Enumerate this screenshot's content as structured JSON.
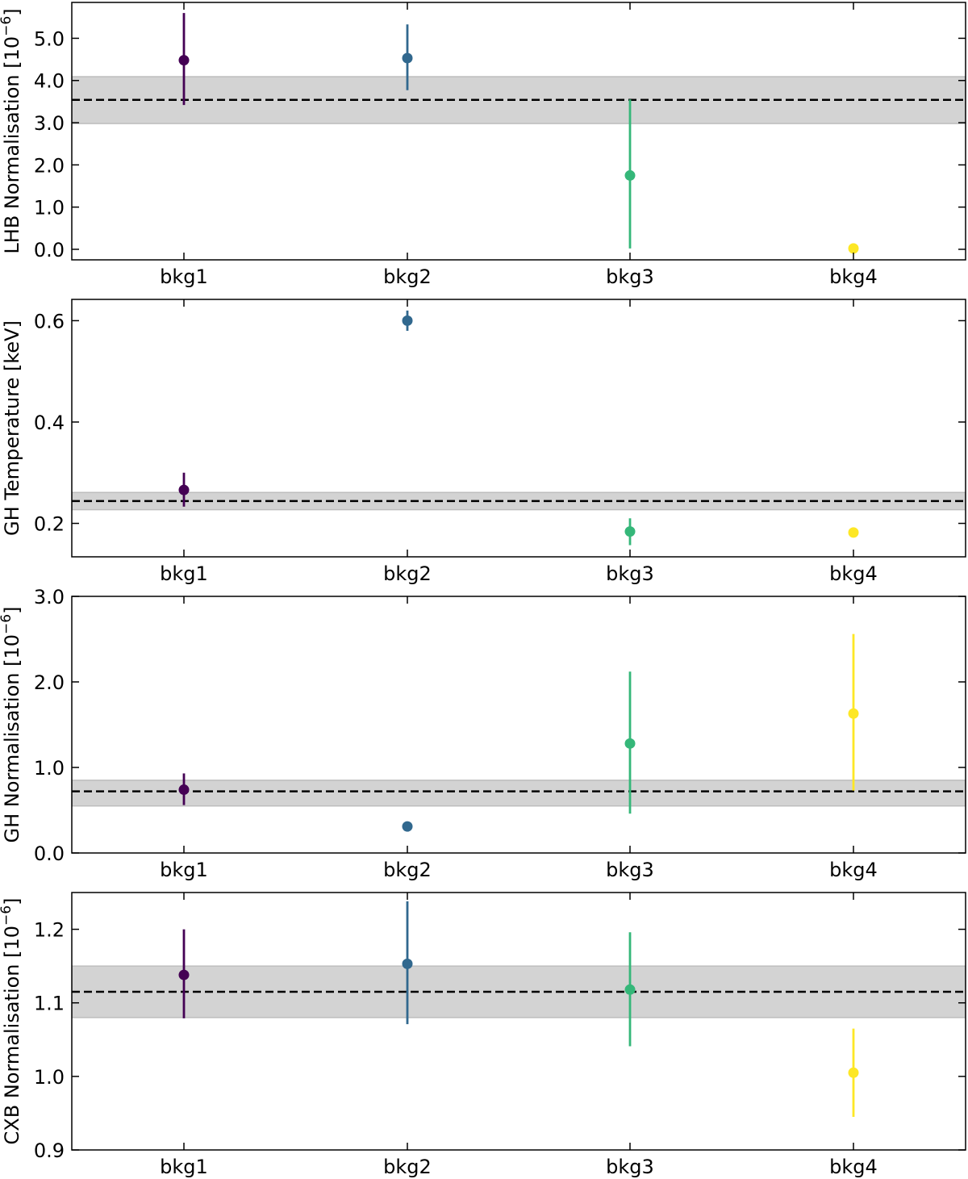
{
  "figure": {
    "colors": {
      "bkg1": "#440154",
      "bkg2": "#31688e",
      "bkg3": "#35b779",
      "bkg4": "#fde725",
      "band": "#d3d3d3",
      "mean_line": "#000000"
    }
  },
  "chart_data": [
    {
      "type": "scatter",
      "ylabel": "LHB Normalisation [10",
      "ylabel_exponent": "−6",
      "ylabel_close": "]",
      "categories": [
        "bkg1",
        "bkg2",
        "bkg3",
        "bkg4"
      ],
      "ylim": [
        -0.25,
        5.85
      ],
      "yticks": [
        0.0,
        1.0,
        2.0,
        3.0,
        4.0,
        5.0
      ],
      "ytick_labels": [
        "0.0",
        "1.0",
        "2.0",
        "3.0",
        "4.0",
        "5.0"
      ],
      "points": [
        {
          "category": "bkg1",
          "value": 4.48,
          "err_low": 3.42,
          "err_high": 5.6
        },
        {
          "category": "bkg2",
          "value": 4.53,
          "err_low": 3.77,
          "err_high": 5.33
        },
        {
          "category": "bkg3",
          "value": 1.75,
          "err_low": 0.02,
          "err_high": 3.55
        },
        {
          "category": "bkg4",
          "value": 0.02,
          "err_low": 0.02,
          "err_high": 0.02
        }
      ],
      "mean": 3.54,
      "band": [
        2.98,
        4.09
      ],
      "grid": false
    },
    {
      "type": "scatter",
      "ylabel": "GH Temperature [keV]",
      "categories": [
        "bkg1",
        "bkg2",
        "bkg3",
        "bkg4"
      ],
      "ylim": [
        0.134,
        0.642
      ],
      "yticks": [
        0.2,
        0.4,
        0.6
      ],
      "ytick_labels": [
        "0.2",
        "0.4",
        "0.6"
      ],
      "points": [
        {
          "category": "bkg1",
          "value": 0.266,
          "err_low": 0.233,
          "err_high": 0.3
        },
        {
          "category": "bkg2",
          "value": 0.6,
          "err_low": 0.58,
          "err_high": 0.62
        },
        {
          "category": "bkg3",
          "value": 0.184,
          "err_low": 0.157,
          "err_high": 0.21
        },
        {
          "category": "bkg4",
          "value": 0.182,
          "err_low": 0.182,
          "err_high": 0.182
        }
      ],
      "mean": 0.244,
      "band": [
        0.227,
        0.261
      ],
      "grid": false
    },
    {
      "type": "scatter",
      "ylabel": "GH Normalisation [10",
      "ylabel_exponent": "−6",
      "ylabel_close": "]",
      "categories": [
        "bkg1",
        "bkg2",
        "bkg3",
        "bkg4"
      ],
      "ylim": [
        0.0,
        3.0
      ],
      "yticks": [
        0.0,
        1.0,
        2.0,
        3.0
      ],
      "ytick_labels": [
        "0.0",
        "1.0",
        "2.0",
        "3.0"
      ],
      "points": [
        {
          "category": "bkg1",
          "value": 0.74,
          "err_low": 0.56,
          "err_high": 0.93
        },
        {
          "category": "bkg2",
          "value": 0.31,
          "err_low": 0.28,
          "err_high": 0.34
        },
        {
          "category": "bkg3",
          "value": 1.28,
          "err_low": 0.46,
          "err_high": 2.12
        },
        {
          "category": "bkg4",
          "value": 1.63,
          "err_low": 0.73,
          "err_high": 2.56
        }
      ],
      "mean": 0.72,
      "band": [
        0.55,
        0.85
      ],
      "grid": false
    },
    {
      "type": "scatter",
      "ylabel": "CXB Normalisation [10",
      "ylabel_exponent": "−6",
      "ylabel_close": "]",
      "categories": [
        "bkg1",
        "bkg2",
        "bkg3",
        "bkg4"
      ],
      "ylim": [
        0.9,
        1.25
      ],
      "yticks": [
        0.9,
        1.0,
        1.1,
        1.2
      ],
      "ytick_labels": [
        "0.9",
        "1.0",
        "1.1",
        "1.2"
      ],
      "points": [
        {
          "category": "bkg1",
          "value": 1.138,
          "err_low": 1.079,
          "err_high": 1.2
        },
        {
          "category": "bkg2",
          "value": 1.153,
          "err_low": 1.071,
          "err_high": 1.238
        },
        {
          "category": "bkg3",
          "value": 1.118,
          "err_low": 1.041,
          "err_high": 1.196
        },
        {
          "category": "bkg4",
          "value": 1.005,
          "err_low": 0.945,
          "err_high": 1.065
        }
      ],
      "mean": 1.115,
      "band": [
        1.08,
        1.15
      ],
      "grid": false
    }
  ]
}
